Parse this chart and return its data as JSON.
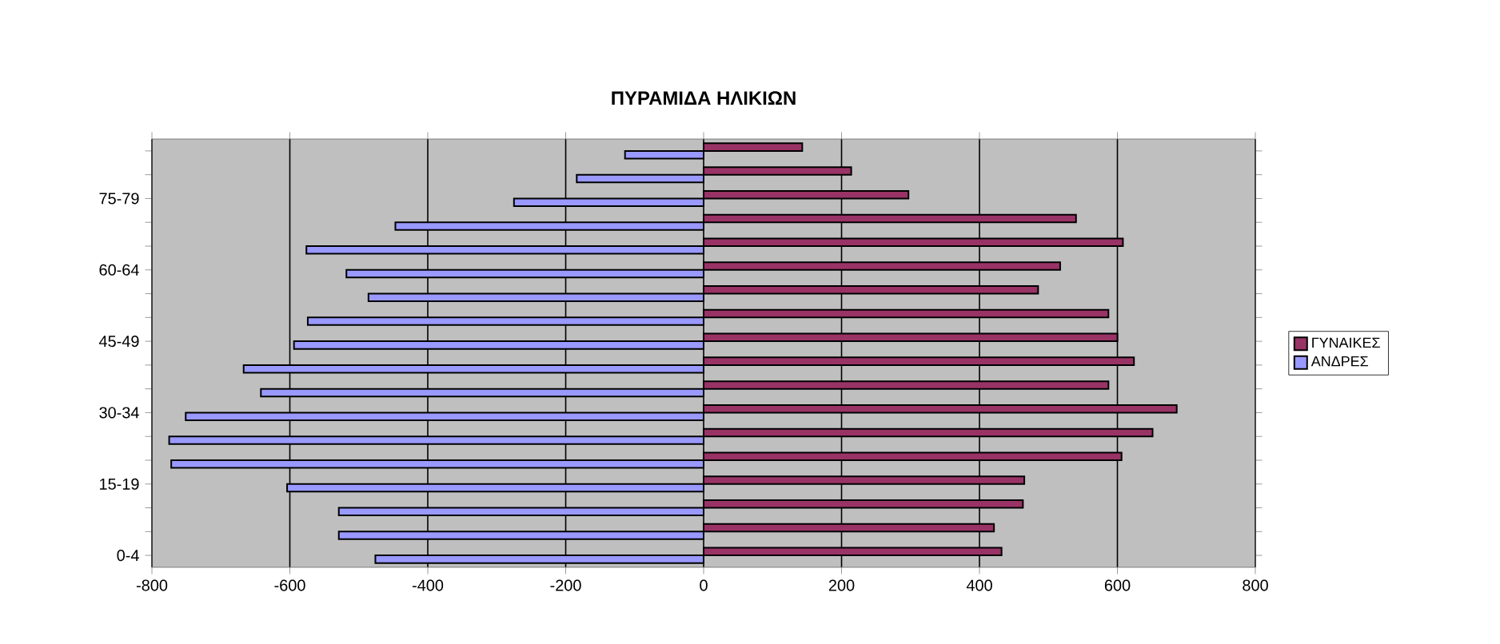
{
  "chart_data": {
    "type": "bar",
    "orientation": "horizontal",
    "title": "ΠΥΡΑΜΙΔΑ ΗΛΙΚΙΩΝ",
    "categories": [
      null,
      null,
      "75-79",
      null,
      null,
      "60-64",
      null,
      null,
      "45-49",
      null,
      null,
      "30-34",
      null,
      null,
      "15-19",
      null,
      null,
      "0-4"
    ],
    "series": [
      {
        "name": "ΓΥΝΑΙΚΕΣ",
        "color": "#993366",
        "values": [
          143,
          214,
          297,
          540,
          608,
          517,
          485,
          587,
          600,
          624,
          587,
          686,
          651,
          606,
          465,
          463,
          421,
          432
        ]
      },
      {
        "name": "ΑΝΔΡΕΣ",
        "color": "#9999ff",
        "values": [
          -114,
          -184,
          -275,
          -447,
          -576,
          -518,
          -486,
          -574,
          -594,
          -667,
          -642,
          -751,
          -775,
          -772,
          -604,
          -529,
          -529,
          -476
        ]
      }
    ],
    "xlim": [
      -800,
      800
    ],
    "xticks": [
      -800,
      -600,
      -400,
      -200,
      0,
      200,
      400,
      600,
      800
    ],
    "grid": "x",
    "legend": "right"
  }
}
